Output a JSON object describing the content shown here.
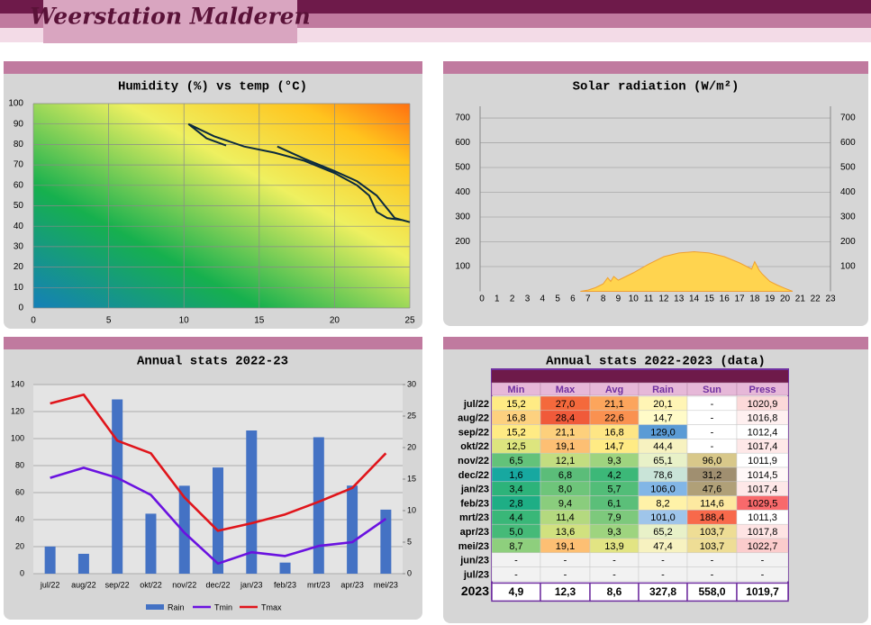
{
  "header": {
    "title": "Weerstation Malderen"
  },
  "chart_data": [
    {
      "type": "line",
      "title": "Humidity (%) vs temp (°C)",
      "color": "#0b2a3e",
      "x": [
        12.8,
        11.5,
        10.3,
        12,
        14,
        16,
        18,
        20,
        21.5,
        22.3,
        22.8,
        23.5,
        24.5,
        25,
        24,
        22.8,
        21.5,
        20,
        18,
        16.2
      ],
      "values": [
        79.5,
        83,
        90,
        84,
        79,
        76,
        72,
        66,
        60,
        55,
        47,
        44,
        43,
        42,
        44,
        55,
        62,
        67,
        73,
        79
      ],
      "xlim": [
        0,
        25
      ],
      "xticks": [
        0,
        5,
        10,
        15,
        20,
        25
      ],
      "ylim": [
        0,
        100
      ],
      "yticks": [
        0,
        10,
        20,
        30,
        40,
        50,
        60,
        70,
        80,
        90,
        100
      ],
      "grid": true
    },
    {
      "type": "area",
      "title": "Solar radiation (W/m²)",
      "color": "#ffd44f",
      "x": [
        6.5,
        7,
        7.5,
        8,
        8.3,
        8.5,
        8.7,
        9,
        10,
        11,
        12,
        13,
        14,
        15,
        16,
        17,
        17.8,
        18,
        18.3,
        18.5,
        19,
        19.5,
        20,
        20.5
      ],
      "values": [
        0,
        5,
        15,
        30,
        55,
        40,
        60,
        45,
        75,
        110,
        140,
        155,
        160,
        155,
        140,
        115,
        90,
        120,
        85,
        70,
        40,
        25,
        12,
        0
      ],
      "xlim": [
        0,
        23
      ],
      "xticks": [
        0,
        1,
        2,
        3,
        4,
        5,
        6,
        7,
        8,
        9,
        10,
        11,
        12,
        13,
        14,
        15,
        16,
        17,
        18,
        19,
        20,
        21,
        22,
        23
      ],
      "ylim": [
        0,
        750
      ],
      "yticks": [
        100,
        200,
        300,
        400,
        500,
        600,
        700
      ],
      "grid": true
    },
    {
      "type": "bar_line",
      "title": "Annual stats 2022-23",
      "categories": [
        "jul/22",
        "aug/22",
        "sep/22",
        "okt/22",
        "nov/22",
        "dec/22",
        "jan/23",
        "feb/23",
        "mrt/23",
        "apr/23",
        "mei/23"
      ],
      "series": [
        {
          "name": "Rain",
          "type": "bar",
          "color": "#4472c4",
          "values": [
            20.1,
            14.7,
            129.0,
            44.4,
            65.1,
            78.6,
            106.0,
            8.2,
            101.0,
            65.2,
            47.4
          ]
        },
        {
          "name": "Tmin",
          "type": "line",
          "axis": "y2",
          "color": "#6a12e0",
          "values": [
            15.2,
            16.8,
            15.2,
            12.5,
            6.5,
            1.6,
            3.4,
            2.8,
            4.4,
            5.0,
            8.7
          ]
        },
        {
          "name": "Tmax",
          "type": "line",
          "axis": "y2",
          "color": "#e0151b",
          "values": [
            27.0,
            28.4,
            21.1,
            19.1,
            12.1,
            6.8,
            8.0,
            9.4,
            11.4,
            13.6,
            19.1
          ]
        }
      ],
      "ylim": [
        0,
        140
      ],
      "yticks": [
        0,
        20,
        40,
        60,
        80,
        100,
        120,
        140
      ],
      "y2lim": [
        0,
        30
      ],
      "y2ticks": [
        0,
        5,
        10,
        15,
        20,
        25,
        30
      ],
      "grid": true,
      "legend": "bottom"
    }
  ],
  "table": {
    "title": "Annual stats 2022-2023 (data)",
    "columns": [
      "Min",
      "Max",
      "Avg",
      "Rain",
      "Sun",
      "Press"
    ],
    "rows": [
      {
        "label": "jul/22",
        "cells": [
          "15,2",
          "27,0",
          "21,1",
          "20,1",
          "-",
          "1020,9"
        ],
        "colors": [
          "#ffeb84",
          "#f4693c",
          "#fca55c",
          "#fff5b5",
          "#ffffff",
          "#fcd9d9"
        ]
      },
      {
        "label": "aug/22",
        "cells": [
          "16,8",
          "28,4",
          "22,6",
          "14,7",
          "-",
          "1016,8"
        ],
        "colors": [
          "#fdd17f",
          "#f05a3a",
          "#fa9150",
          "#fffbc8",
          "#ffffff",
          "#fff0f0"
        ]
      },
      {
        "label": "sep/22",
        "cells": [
          "15,2",
          "21,1",
          "16,8",
          "129,0",
          "-",
          "1012,4"
        ],
        "colors": [
          "#ffeb84",
          "#fdd07c",
          "#fee685",
          "#5b9bd5",
          "#ffffff",
          "#ffffff"
        ]
      },
      {
        "label": "okt/22",
        "cells": [
          "12,5",
          "19,1",
          "14,7",
          "44,4",
          "-",
          "1017,4"
        ],
        "colors": [
          "#dde57e",
          "#fdbf73",
          "#ffeb84",
          "#f7f2c0",
          "#ffffff",
          "#fee8e8"
        ]
      },
      {
        "label": "nov/22",
        "cells": [
          "6,5",
          "12,1",
          "9,3",
          "65,1",
          "96,0",
          "1011,9"
        ],
        "colors": [
          "#63c27a",
          "#c3dd80",
          "#9ed47f",
          "#e8f1c8",
          "#d8c88a",
          "#ffffff"
        ]
      },
      {
        "label": "dec/22",
        "cells": [
          "1,6",
          "6,8",
          "4,2",
          "78,6",
          "31,2",
          "1014,5"
        ],
        "colors": [
          "#17a8a0",
          "#5bbd79",
          "#3cb878",
          "#c9e4d8",
          "#a08f70",
          "#fff8f8"
        ]
      },
      {
        "label": "jan/23",
        "cells": [
          "3,4",
          "8,0",
          "5,7",
          "106,0",
          "47,6",
          "1017,4"
        ],
        "colors": [
          "#2db37a",
          "#6ec57a",
          "#52bd78",
          "#82b6e6",
          "#b0a078",
          "#fee8e8"
        ]
      },
      {
        "label": "feb/23",
        "cells": [
          "2,8",
          "9,4",
          "6,1",
          "8,2",
          "114,6",
          "1029,5"
        ],
        "colors": [
          "#1eae85",
          "#8acd7d",
          "#5bbf79",
          "#fff2a8",
          "#fde9a0",
          "#f8696b"
        ]
      },
      {
        "label": "mrt/23",
        "cells": [
          "4,4",
          "11,4",
          "7,9",
          "101,0",
          "188,4",
          "1011,3"
        ],
        "colors": [
          "#39b778",
          "#b4d97f",
          "#7dc97c",
          "#9fc5ea",
          "#f8694b",
          "#ffffff"
        ]
      },
      {
        "label": "apr/23",
        "cells": [
          "5,0",
          "13,6",
          "9,3",
          "65,2",
          "103,7",
          "1017,8"
        ],
        "colors": [
          "#45ba78",
          "#d1e17f",
          "#9ed47f",
          "#e8f1c8",
          "#eedd95",
          "#fee4e4"
        ]
      },
      {
        "label": "mei/23",
        "cells": [
          "8,7",
          "19,1",
          "13,9",
          "47,4",
          "103,7",
          "1022,7"
        ],
        "colors": [
          "#8ecf7d",
          "#fdbf73",
          "#e2e483",
          "#f7f2c0",
          "#eedd95",
          "#fbcccc"
        ]
      },
      {
        "label": "jun/23",
        "cells": [
          "-",
          "-",
          "-",
          "-",
          "-",
          "-"
        ],
        "colors": [
          "#f2f2f2",
          "#f2f2f2",
          "#f2f2f2",
          "#f2f2f2",
          "#f2f2f2",
          "#f2f2f2"
        ]
      },
      {
        "label": "jul/23",
        "cells": [
          "-",
          "-",
          "-",
          "-",
          "-",
          "-"
        ],
        "colors": [
          "#f2f2f2",
          "#f2f2f2",
          "#f2f2f2",
          "#f2f2f2",
          "#f2f2f2",
          "#f2f2f2"
        ]
      }
    ],
    "total": {
      "label": "2023",
      "cells": [
        "4,9",
        "12,3",
        "8,6",
        "327,8",
        "558,0",
        "1019,7"
      ]
    }
  }
}
